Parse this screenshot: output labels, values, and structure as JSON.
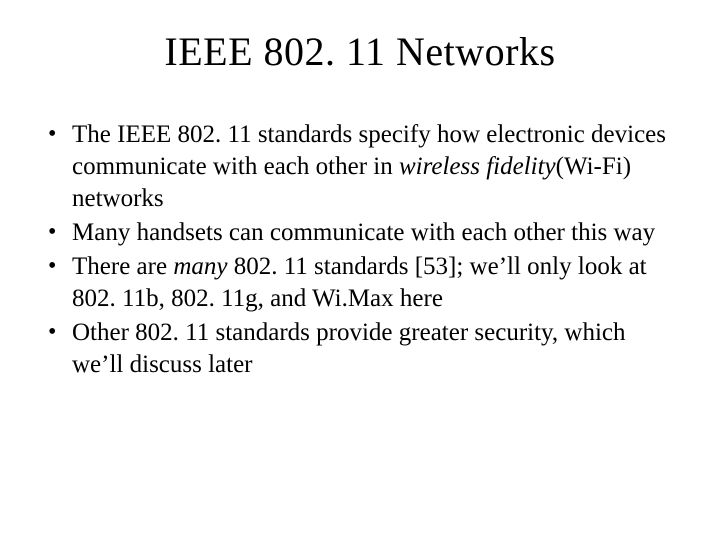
{
  "title": "IEEE 802. 11 Networks",
  "bullets": [
    {
      "pre": "The IEEE 802. 11 standards specify how electronic devices communicate with each other in ",
      "em": "wireless fidelity",
      "post": "(Wi-Fi) networks"
    },
    {
      "pre": "Many handsets can communicate with each other this way",
      "em": "",
      "post": ""
    },
    {
      "pre": "There are ",
      "em": "many",
      "post": " 802. 11 standards [53]; we’ll only look at 802. 11b, 802. 11g, and Wi.Max here"
    },
    {
      "pre": "Other 802. 11 standards provide greater security, which we’ll discuss later",
      "em": "",
      "post": ""
    }
  ]
}
